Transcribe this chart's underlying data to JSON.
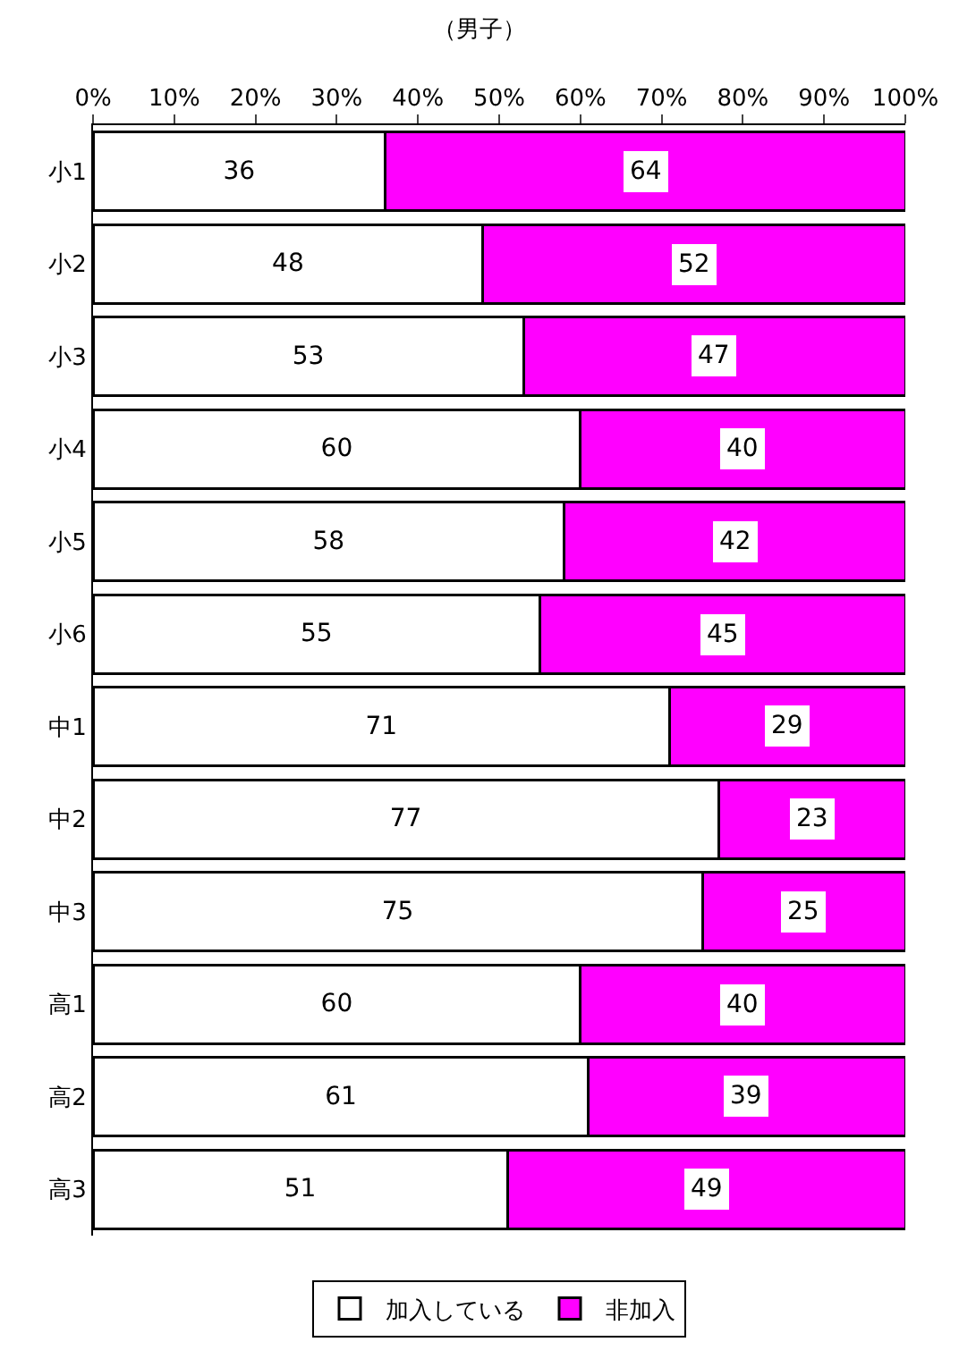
{
  "chart_data": {
    "type": "bar",
    "title": "（男子）",
    "orientation": "horizontal",
    "stacked": true,
    "data_labels": true,
    "grid": false,
    "legend": "bottom",
    "categories": [
      "小1",
      "小2",
      "小3",
      "小4",
      "小5",
      "小6",
      "中1",
      "中2",
      "中3",
      "高1",
      "高2",
      "高3"
    ],
    "series": [
      {
        "name": "加入している",
        "color": "#ffffff",
        "values": [
          36,
          48,
          53,
          60,
          58,
          55,
          71,
          77,
          75,
          60,
          61,
          51
        ]
      },
      {
        "name": "非加入",
        "color": "#ff00ff",
        "values": [
          64,
          52,
          47,
          40,
          42,
          45,
          29,
          23,
          25,
          40,
          39,
          49
        ]
      }
    ],
    "xlim": [
      0,
      100
    ],
    "xticks": [
      {
        "value": 0,
        "label": "0%"
      },
      {
        "value": 10,
        "label": "10%"
      },
      {
        "value": 20,
        "label": "20%"
      },
      {
        "value": 30,
        "label": "30%"
      },
      {
        "value": 40,
        "label": "40%"
      },
      {
        "value": 50,
        "label": "50%"
      },
      {
        "value": 60,
        "label": "60%"
      },
      {
        "value": 70,
        "label": "70%"
      },
      {
        "value": 80,
        "label": "80%"
      },
      {
        "value": 90,
        "label": "90%"
      },
      {
        "value": 100,
        "label": "100%"
      }
    ]
  }
}
